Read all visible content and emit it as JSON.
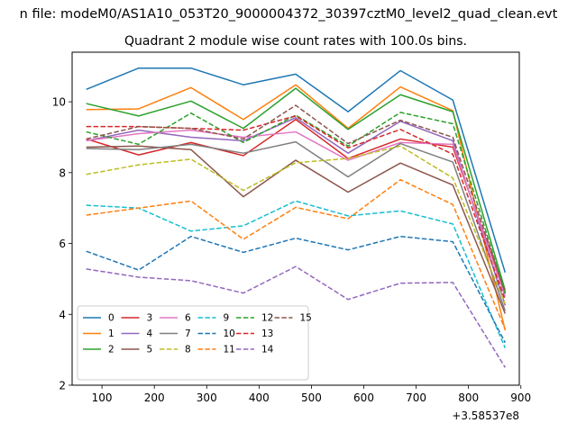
{
  "figure": {
    "suptitle": "n file: modeM0/AS1A10_053T20_9000004372_30397cztM0_level2_quad_clean.evt",
    "title": "Quadrant 2 module wise count rates with 100.0s bins.",
    "offset_label": "+3.58537e8"
  },
  "chart_data": {
    "type": "line",
    "title": "Quadrant 2 module wise count rates with 100.0s bins.",
    "xlabel": "",
    "ylabel": "",
    "x_offset": 358537000,
    "x": [
      70,
      170,
      270,
      370,
      470,
      570,
      670,
      770,
      870
    ],
    "xlim": [
      43,
      897
    ],
    "ylim": [
      2,
      11.4
    ],
    "xticks": [
      100,
      200,
      300,
      400,
      500,
      600,
      700,
      800,
      900
    ],
    "yticks": [
      2,
      4,
      6,
      8,
      10
    ],
    "grid": false,
    "legend": {
      "placement": "lower left",
      "columns": 6
    },
    "series": [
      {
        "name": "0",
        "color": "#1f77b4",
        "dash": "solid",
        "values": [
          10.35,
          10.95,
          10.95,
          10.48,
          10.78,
          9.72,
          10.88,
          10.05,
          5.18
        ]
      },
      {
        "name": "1",
        "color": "#ff7f0e",
        "dash": "solid",
        "values": [
          9.78,
          9.8,
          10.4,
          9.5,
          10.48,
          9.25,
          10.42,
          9.75,
          3.55
        ]
      },
      {
        "name": "2",
        "color": "#2ca02c",
        "dash": "solid",
        "values": [
          9.95,
          9.6,
          10.02,
          9.25,
          10.38,
          9.22,
          10.2,
          9.72,
          4.68
        ]
      },
      {
        "name": "3",
        "color": "#d62728",
        "dash": "solid",
        "values": [
          8.95,
          8.5,
          8.85,
          8.48,
          9.5,
          8.4,
          8.95,
          8.72,
          4.62
        ]
      },
      {
        "name": "4",
        "color": "#9467bd",
        "dash": "solid",
        "values": [
          8.9,
          9.2,
          9.0,
          8.9,
          9.55,
          8.55,
          9.45,
          8.9,
          4.25
        ]
      },
      {
        "name": "5",
        "color": "#8c564b",
        "dash": "solid",
        "values": [
          8.72,
          8.75,
          8.65,
          7.32,
          8.35,
          7.45,
          8.27,
          7.65,
          4.02
        ]
      },
      {
        "name": "6",
        "color": "#e377c2",
        "dash": "solid",
        "values": [
          8.9,
          9.1,
          9.2,
          9.0,
          9.15,
          8.35,
          8.85,
          8.8,
          4.5
        ]
      },
      {
        "name": "7",
        "color": "#7f7f7f",
        "dash": "solid",
        "values": [
          8.68,
          8.65,
          8.8,
          8.55,
          8.87,
          7.88,
          8.82,
          8.3,
          4.1
        ]
      },
      {
        "name": "8",
        "color": "#bcbd22",
        "dash": "dashed",
        "values": [
          7.95,
          8.22,
          8.38,
          7.5,
          8.28,
          8.4,
          8.75,
          7.85,
          4.3
        ]
      },
      {
        "name": "9",
        "color": "#17becf",
        "dash": "dashed",
        "values": [
          7.08,
          7.0,
          6.35,
          6.5,
          7.2,
          6.78,
          6.92,
          6.55,
          3.05
        ]
      },
      {
        "name": "10",
        "color": "#1f77b4",
        "dash": "dashed",
        "values": [
          5.78,
          5.25,
          6.2,
          5.75,
          6.15,
          5.82,
          6.2,
          6.05,
          3.2
        ]
      },
      {
        "name": "11",
        "color": "#ff7f0e",
        "dash": "dashed",
        "values": [
          6.8,
          7.0,
          7.2,
          6.12,
          7.02,
          6.7,
          7.8,
          7.1,
          3.58
        ]
      },
      {
        "name": "12",
        "color": "#2ca02c",
        "dash": "dashed",
        "values": [
          9.15,
          8.8,
          9.68,
          8.85,
          9.62,
          8.75,
          9.7,
          9.38,
          4.58
        ]
      },
      {
        "name": "13",
        "color": "#d62728",
        "dash": "dashed",
        "values": [
          9.3,
          9.3,
          9.25,
          9.2,
          9.6,
          8.7,
          9.22,
          8.52,
          4.4
        ]
      },
      {
        "name": "14",
        "color": "#9467bd",
        "dash": "dashed",
        "values": [
          5.28,
          5.05,
          4.95,
          4.6,
          5.35,
          4.42,
          4.88,
          4.9,
          2.5
        ]
      },
      {
        "name": "15",
        "color": "#8c564b",
        "dash": "dashed",
        "values": [
          8.95,
          9.3,
          9.25,
          8.95,
          9.9,
          8.82,
          9.48,
          9.0,
          4.62
        ]
      }
    ]
  }
}
